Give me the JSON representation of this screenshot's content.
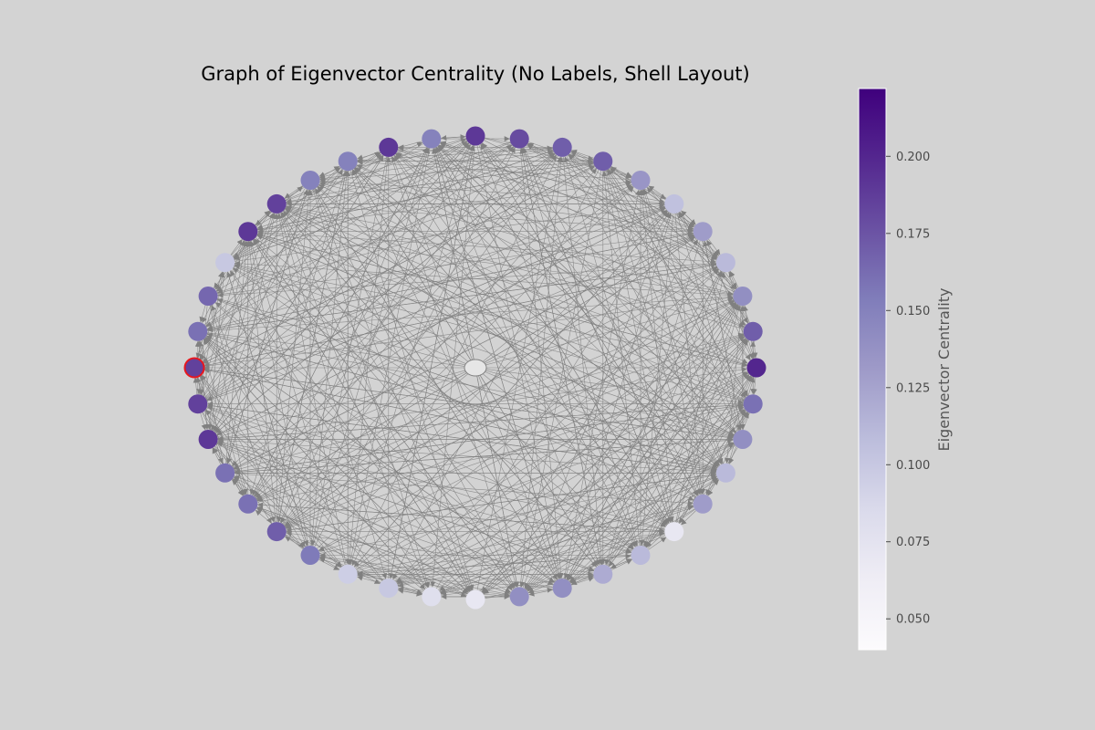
{
  "title": "Graph of Eigenvector Centrality (No Labels, Shell Layout)",
  "colorbar": {
    "label": "Eigenvector Centrality",
    "min": 0.04,
    "max": 0.222,
    "ticks": [
      "0.050",
      "0.075",
      "0.100",
      "0.125",
      "0.150",
      "0.175",
      "0.200"
    ],
    "colormap": "Purples"
  },
  "graph": {
    "layout": "shell",
    "directed": true,
    "node_count": 40,
    "edge_color": "#808080",
    "highlight_color": "#e8171e",
    "highlighted_node": 30,
    "self_loop_at_center": true,
    "nodes": [
      {
        "id": 0,
        "centrality": 0.19
      },
      {
        "id": 1,
        "centrality": 0.18
      },
      {
        "id": 2,
        "centrality": 0.17
      },
      {
        "id": 3,
        "centrality": 0.17
      },
      {
        "id": 4,
        "centrality": 0.135
      },
      {
        "id": 5,
        "centrality": 0.105
      },
      {
        "id": 6,
        "centrality": 0.13
      },
      {
        "id": 7,
        "centrality": 0.11
      },
      {
        "id": 8,
        "centrality": 0.14
      },
      {
        "id": 9,
        "centrality": 0.17
      },
      {
        "id": 10,
        "centrality": 0.2
      },
      {
        "id": 11,
        "centrality": 0.16
      },
      {
        "id": 12,
        "centrality": 0.14
      },
      {
        "id": 13,
        "centrality": 0.11
      },
      {
        "id": 14,
        "centrality": 0.13
      },
      {
        "id": 15,
        "centrality": 0.07
      },
      {
        "id": 16,
        "centrality": 0.11
      },
      {
        "id": 17,
        "centrality": 0.12
      },
      {
        "id": 18,
        "centrality": 0.14
      },
      {
        "id": 19,
        "centrality": 0.14
      },
      {
        "id": 20,
        "centrality": 0.07
      },
      {
        "id": 21,
        "centrality": 0.08
      },
      {
        "id": 22,
        "centrality": 0.1
      },
      {
        "id": 23,
        "centrality": 0.095
      },
      {
        "id": 24,
        "centrality": 0.155
      },
      {
        "id": 25,
        "centrality": 0.17
      },
      {
        "id": 26,
        "centrality": 0.16
      },
      {
        "id": 27,
        "centrality": 0.16
      },
      {
        "id": 28,
        "centrality": 0.19
      },
      {
        "id": 29,
        "centrality": 0.185
      },
      {
        "id": 30,
        "centrality": 0.185
      },
      {
        "id": 31,
        "centrality": 0.16
      },
      {
        "id": 32,
        "centrality": 0.165
      },
      {
        "id": 33,
        "centrality": 0.1
      },
      {
        "id": 34,
        "centrality": 0.19
      },
      {
        "id": 35,
        "centrality": 0.185
      },
      {
        "id": 36,
        "centrality": 0.15
      },
      {
        "id": 37,
        "centrality": 0.15
      },
      {
        "id": 38,
        "centrality": 0.19
      },
      {
        "id": 39,
        "centrality": 0.15
      }
    ]
  }
}
